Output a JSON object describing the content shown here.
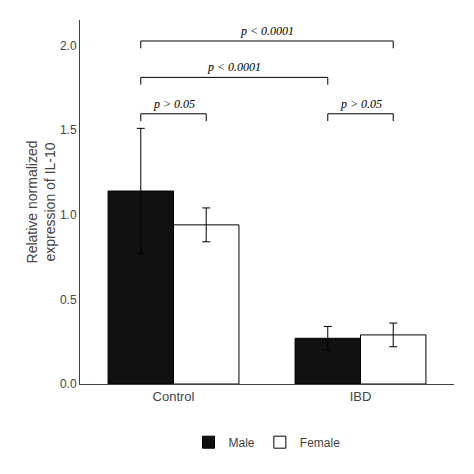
{
  "chart_data": {
    "type": "bar",
    "categories": [
      "Control",
      "IBD"
    ],
    "series": [
      {
        "name": "Male",
        "color": "#111111",
        "values": [
          1.14,
          0.27
        ],
        "errors": [
          0.37,
          0.07
        ]
      },
      {
        "name": "Female",
        "color": "#ffffff",
        "values": [
          0.94,
          0.29
        ],
        "errors": [
          0.1,
          0.07
        ]
      }
    ],
    "ylabel": "Relative normalized\nexpression of IL-10",
    "ylim": [
      0.0,
      2.15
    ],
    "yticks": [
      {
        "value": 0.0,
        "label": "0.0"
      },
      {
        "value": 0.5,
        "label": "0.5"
      },
      {
        "value": 1.0,
        "label": "1.0"
      },
      {
        "value": 1.5,
        "label": "1.5"
      },
      {
        "value": 2.0,
        "label": "2.0"
      }
    ],
    "grid": false,
    "legend": "bottom",
    "annotations": [
      {
        "text": "p > 0.05",
        "between": [
          [
            "Control",
            "Male"
          ],
          [
            "Control",
            "Female"
          ]
        ]
      },
      {
        "text": "p < 0.0001",
        "between": [
          [
            "Control",
            "Male"
          ],
          [
            "IBD",
            "Male"
          ]
        ]
      },
      {
        "text": "p > 0.05",
        "between": [
          [
            "IBD",
            "Male"
          ],
          [
            "IBD",
            "Female"
          ]
        ]
      },
      {
        "text": "p < 0.0001",
        "between": [
          [
            "Control",
            "Male"
          ],
          [
            "IBD",
            "Female"
          ]
        ]
      }
    ]
  }
}
